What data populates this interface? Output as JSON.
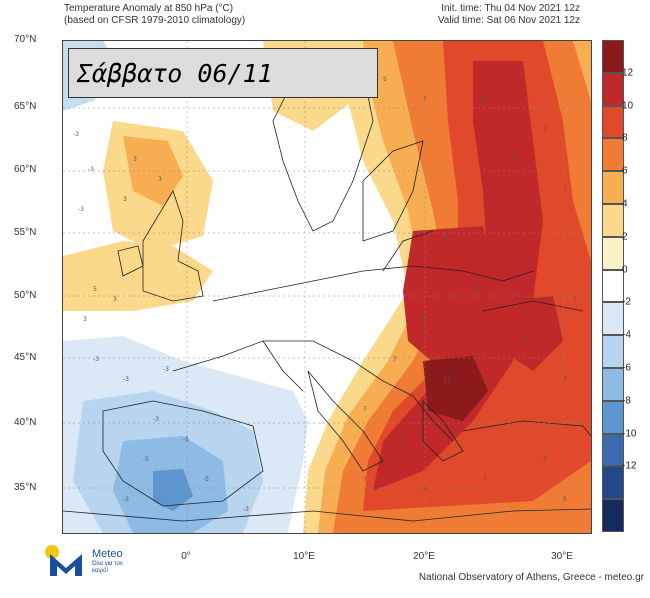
{
  "header": {
    "title_line1": "Temperature Anomaly at 850 hPa (°C)",
    "title_line2": "(based on CFSR 1979-2010 climatology)",
    "init_time": "Init. time: Thu 04 Nov 2021 12z",
    "valid_time": "Valid time: Sat 06 Nov 2021 12z"
  },
  "day_label": "Σάββατο 06/11",
  "lat_labels": [
    "70°N",
    "65°N",
    "60°N",
    "55°N",
    "50°N",
    "45°N",
    "40°N",
    "35°N"
  ],
  "lon_labels": [
    "0°",
    "10°E",
    "20°E",
    "30°E"
  ],
  "colorbar": {
    "ticks": [
      "12",
      "10",
      "8",
      "6",
      "4",
      "2",
      "0",
      "-2",
      "-4",
      "-6",
      "-8",
      "-10",
      "-12"
    ],
    "colors": [
      "#8b1a1a",
      "#c0282a",
      "#e04a2a",
      "#ef7b35",
      "#f7ae52",
      "#fbd98a",
      "#fbf2c7",
      "#ffffff",
      "#dbe9f6",
      "#b7d5ee",
      "#8dbbe3",
      "#5d96cf",
      "#3a6bb0",
      "#23478c",
      "#142b5e"
    ]
  },
  "logo": {
    "name": "Meteo",
    "tagline": "Όλα για τον καιρό!"
  },
  "footer": "National Observatory of Athens, Greece - meteo.gr"
}
